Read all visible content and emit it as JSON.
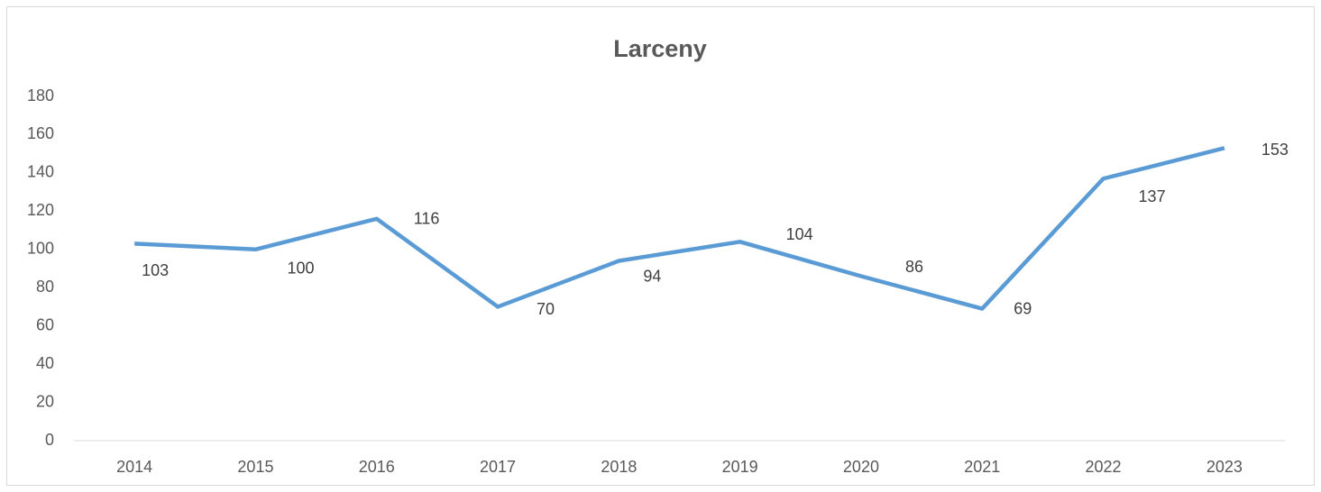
{
  "chart_data": {
    "type": "line",
    "title": "Larceny",
    "categories": [
      "2014",
      "2015",
      "2016",
      "2017",
      "2018",
      "2019",
      "2020",
      "2021",
      "2022",
      "2023"
    ],
    "values": [
      103,
      100,
      116,
      70,
      94,
      104,
      86,
      69,
      137,
      153
    ],
    "color": "#5b9bd5",
    "ylim": [
      0,
      180
    ],
    "yticks": [
      0,
      20,
      40,
      60,
      80,
      100,
      120,
      140,
      160,
      180
    ],
    "grid": false
  }
}
